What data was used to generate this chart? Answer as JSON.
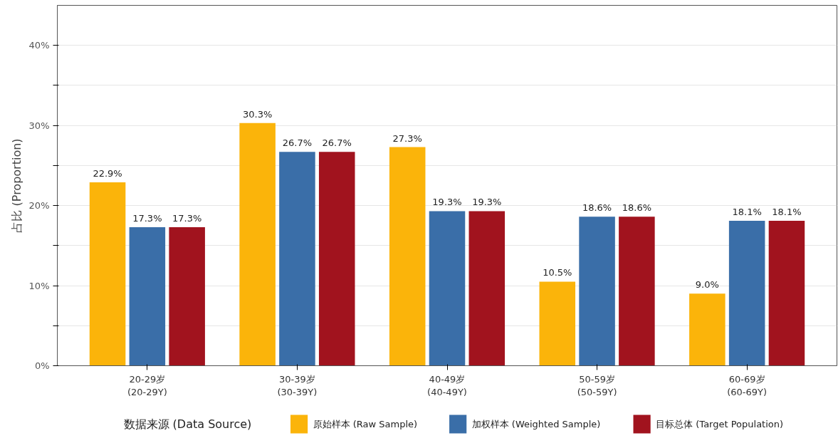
{
  "chart_data": {
    "type": "bar",
    "ylabel": "占比 (Proportion)",
    "legend_title": "数据来源 (Data Source)",
    "categories": [
      "20-29岁\n(20-29Y)",
      "30-39岁\n(30-39Y)",
      "40-49岁\n(40-49Y)",
      "50-59岁\n(50-59Y)",
      "60-69岁\n(60-69Y)"
    ],
    "series": [
      {
        "name": "原始样本 (Raw Sample)",
        "color": "#fbb40a",
        "values": [
          22.9,
          30.3,
          27.3,
          10.5,
          9.0
        ],
        "value_labels": [
          "22.9%",
          "30.3%",
          "27.3%",
          "10.5%",
          "9.0%"
        ]
      },
      {
        "name": "加权样本 (Weighted Sample)",
        "color": "#3a6ea8",
        "values": [
          17.3,
          26.7,
          19.3,
          18.6,
          18.1
        ],
        "value_labels": [
          "17.3%",
          "26.7%",
          "19.3%",
          "18.6%",
          "18.1%"
        ]
      },
      {
        "name": "目标总体 (Target Population)",
        "color": "#a1131e",
        "values": [
          17.3,
          26.7,
          19.3,
          18.6,
          18.1
        ],
        "value_labels": [
          "17.3%",
          "26.7%",
          "19.3%",
          "18.6%",
          "18.1%"
        ]
      }
    ],
    "ylim": [
      0,
      45
    ],
    "yticks": [
      {
        "value": 0,
        "label": "0%"
      },
      {
        "value": 5,
        "label": null
      },
      {
        "value": 10,
        "label": "10%"
      },
      {
        "value": 15,
        "label": null
      },
      {
        "value": 20,
        "label": "20%"
      },
      {
        "value": 25,
        "label": null
      },
      {
        "value": 30,
        "label": "30%"
      },
      {
        "value": 35,
        "label": null
      },
      {
        "value": 40,
        "label": "40%"
      }
    ],
    "grid": "y",
    "legend": "bottom"
  }
}
